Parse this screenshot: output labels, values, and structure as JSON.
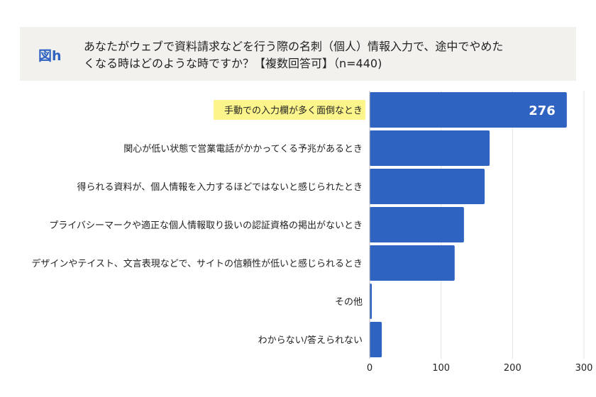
{
  "figure_label": "図h",
  "title_line1": "あなたがウェブで資料請求などを行う際の名刺（個人）情報入力で、途中でやめた",
  "title_line2": "くなる時はどのような時ですか？【複数回答可】（n=440)",
  "colors": {
    "bar": "#2e63c1",
    "highlight": "#fbf58c",
    "header_bg": "#f2f1ee",
    "label_accent": "#2e63c1"
  },
  "chart_data": {
    "type": "bar",
    "orientation": "horizontal",
    "categories": [
      "手動での入力欄が多く面倒なとき",
      "関心が低い状態で営業電話がかかってくる予兆があるとき",
      "得られる資料が、個人情報を入力するほどではないと感じられたとき",
      "プライバシーマークや適正な個人情報取り扱いの認証資格の掲出がないとき",
      "デザインやテイスト、文言表現などで、サイトの信頼性が低いと感じられるとき",
      "その他",
      "わからない/答えられない"
    ],
    "values": [
      276,
      168,
      161,
      132,
      119,
      3,
      17
    ],
    "data_labels": [
      "276",
      "",
      "",
      "",
      "",
      "",
      ""
    ],
    "highlighted_index": 0,
    "xlim": [
      0,
      300
    ],
    "xticks": [
      0,
      100,
      200,
      300
    ],
    "xlabel": "",
    "ylabel": "",
    "grid": true
  }
}
